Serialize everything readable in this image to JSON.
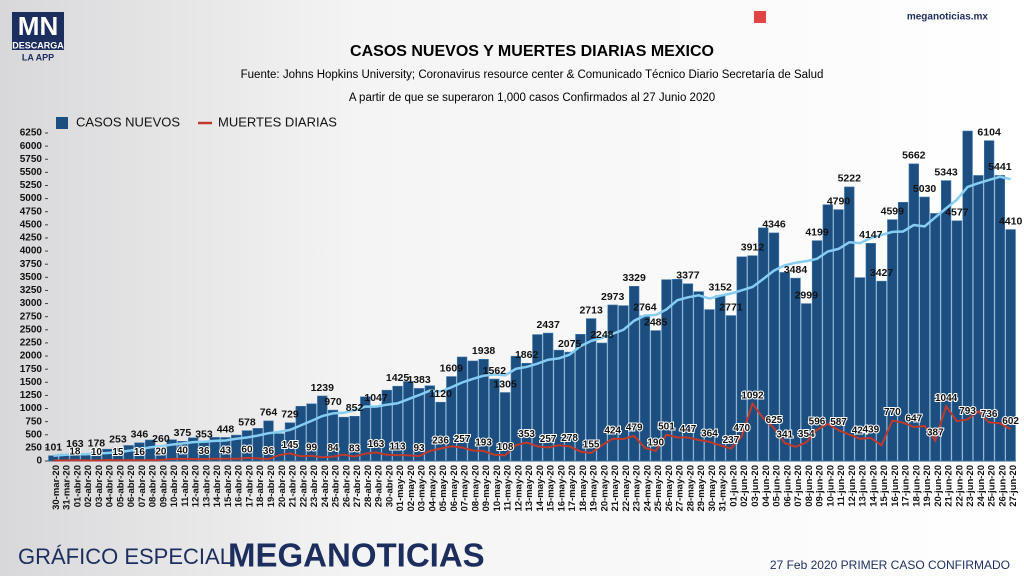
{
  "brand": {
    "logo": "MN",
    "download": "DESCARGA",
    "app": "LA APP",
    "site": "meganoticias.mx"
  },
  "footer": {
    "left": "GRÁFICO ESPECIAL",
    "brand": "MEGANOTICIAS",
    "note": "27 Feb 2020 PRIMER CASO CONFIRMADO"
  },
  "chart_data": {
    "type": "bar",
    "title": "CASOS NUEVOS Y MUERTES DIARIAS MEXICO",
    "subtitle": "Fuente: Johns Hopkins University; Coronavirus resource center & Comunicado Técnico Diario Secretaría de Salud",
    "note": "A partir de que se superaron 1,000 casos Confirmados al 27 Junio 2020",
    "categories": [
      "30-mar-20",
      "31-mar-20",
      "01-abr-20",
      "02-abr-20",
      "03-abr-20",
      "04-abr-20",
      "05-abr-20",
      "06-abr-20",
      "07-abr-20",
      "08-abr-20",
      "09-abr-20",
      "10-abr-20",
      "11-abr-20",
      "12-abr-20",
      "13-abr-20",
      "14-abr-20",
      "15-abr-20",
      "16-abr-20",
      "17-abr-20",
      "18-abr-20",
      "19-abr-20",
      "20-abr-20",
      "21-abr-20",
      "22-abr-20",
      "23-abr-20",
      "24-abr-20",
      "25-abr-20",
      "26-abr-20",
      "27-abr-20",
      "28-abr-20",
      "29-abr-20",
      "30-abr-20",
      "01-may-20",
      "02-may-20",
      "03-may-20",
      "04-may-20",
      "05-may-20",
      "06-may-20",
      "07-may-20",
      "08-may-20",
      "09-may-20",
      "10-may-20",
      "11-may-20",
      "12-may-20",
      "13-may-20",
      "14-may-20",
      "15-may-20",
      "16-may-20",
      "17-may-20",
      "18-may-20",
      "19-may-20",
      "20-may-20",
      "21-may-20",
      "22-may-20",
      "23-may-20",
      "24-may-20",
      "25-may-20",
      "26-may-20",
      "27-may-20",
      "28-may-20",
      "29-may-20",
      "30-may-20",
      "31-may-20",
      "01-jun-20",
      "02-jun-20",
      "03-jun-20",
      "04-jun-20",
      "05-jun-20",
      "06-jun-20",
      "07-jun-20",
      "08-jun-20",
      "09-jun-20",
      "10-jun-20",
      "11-jun-20",
      "12-jun-20",
      "13-jun-20",
      "14-jun-20",
      "15-jun-20",
      "16-jun-20",
      "17-jun-20",
      "18-jun-20",
      "19-jun-20",
      "20-jun-20",
      "21-jun-20",
      "22-jun-20",
      "23-jun-20",
      "24-jun-20",
      "25-jun-20",
      "26-jun-20",
      "27-jun-20"
    ],
    "series": [
      {
        "name": "CASOS NUEVOS",
        "type": "bar",
        "color": "#1c4f80",
        "values": [
          101,
          130,
          163,
          120,
          178,
          225,
          253,
          296,
          346,
          400,
          260,
          405,
          375,
          442,
          353,
          450,
          448,
          493,
          578,
          622,
          764,
          520,
          729,
          1043,
          1089,
          1239,
          970,
          835,
          852,
          1223,
          1047,
          1349,
          1425,
          1515,
          1383,
          1434,
          1120,
          1609,
          1982,
          1906,
          1938,
          1562,
          1305,
          1997,
          1862,
          2409,
          2437,
          2112,
          2075,
          2414,
          2713,
          2248,
          2973,
          2960,
          3329,
          2764,
          2485,
          3455,
          3463,
          3377,
          3227,
          2885,
          3152,
          2771,
          3891,
          3912,
          4442,
          4346,
          3593,
          3484,
          2999,
          4199,
          4883,
          4790,
          5222,
          3494,
          4147,
          3427,
          4599,
          4930,
          5662,
          5030,
          4717,
          5343,
          4577,
          6288,
          5441,
          6104,
          5441,
          4410
        ],
        "value_labels": [
          "101",
          null,
          "163",
          null,
          "178",
          null,
          "253",
          null,
          "346",
          null,
          "260",
          null,
          "375",
          null,
          "353",
          null,
          "448",
          null,
          "578",
          null,
          "764",
          null,
          "729",
          null,
          null,
          "1239",
          "970",
          null,
          "852",
          null,
          "1047",
          null,
          "1425",
          null,
          "1383",
          null,
          "1120",
          "1609",
          null,
          null,
          "1938",
          "1562",
          "1305",
          null,
          "1862",
          null,
          "2437",
          null,
          "2075",
          null,
          "2713",
          "2248",
          "2973",
          null,
          "3329",
          "2764",
          "2485",
          null,
          null,
          "3377",
          null,
          null,
          "3152",
          "2771",
          null,
          "3912",
          null,
          "4346",
          null,
          "3484",
          "2999",
          "4199",
          null,
          "4790",
          "5222",
          null,
          "4147",
          "3427",
          "4599",
          null,
          "5662",
          "5030",
          null,
          "5343",
          "4577",
          null,
          null,
          "6104",
          "5441",
          "4410"
        ]
      },
      {
        "name": "MUERTES DIARIAS",
        "type": "line",
        "color": "#c0392b",
        "values": [
          8,
          12,
          18,
          9,
          10,
          20,
          15,
          16,
          16,
          14,
          20,
          38,
          40,
          39,
          36,
          44,
          43,
          40,
          60,
          50,
          36,
          111,
          145,
          90,
          99,
          70,
          84,
          120,
          83,
          140,
          163,
          120,
          113,
          110,
          93,
          190,
          236,
          280,
          257,
          200,
          193,
          120,
          108,
          300,
          353,
          280,
          257,
          300,
          278,
          180,
          155,
          300,
          424,
          420,
          479,
          250,
          190,
          501,
          450,
          447,
          400,
          364,
          300,
          237,
          470,
          1092,
          816,
          625,
          341,
          270,
          354,
          596,
          708,
          587,
          504,
          424,
          439,
          300,
          770,
          730,
          647,
          667,
          387,
          1044,
          759,
          793,
          950,
          736,
          719,
          602
        ],
        "value_labels": [
          null,
          null,
          "18",
          null,
          "10",
          null,
          "15",
          null,
          "16",
          null,
          "20",
          null,
          "40",
          null,
          "36",
          null,
          "43",
          null,
          "60",
          null,
          "36",
          null,
          "145",
          null,
          "99",
          null,
          "84",
          null,
          "83",
          null,
          "163",
          null,
          "113",
          null,
          "93",
          null,
          "236",
          null,
          "257",
          null,
          "193",
          null,
          "108",
          null,
          "353",
          null,
          "257",
          null,
          "278",
          null,
          "155",
          null,
          "424",
          null,
          "479",
          null,
          "190",
          "501",
          null,
          "447",
          null,
          "364",
          null,
          "237",
          "470",
          "1092",
          null,
          "625",
          "341",
          null,
          "354",
          "596",
          null,
          "587",
          null,
          "424",
          "439",
          null,
          "770",
          null,
          "647",
          null,
          "387",
          "1044",
          null,
          "793",
          null,
          "736",
          null,
          "602"
        ]
      }
    ],
    "trend_color": "#86cdf2",
    "ylim": [
      0,
      6250
    ],
    "yticks": [
      0,
      250,
      500,
      750,
      1000,
      1250,
      1500,
      1750,
      2000,
      2250,
      2500,
      2750,
      3000,
      3250,
      3500,
      3750,
      4000,
      4250,
      4500,
      4750,
      5000,
      5250,
      5500,
      5750,
      6000,
      6250
    ],
    "grid": false,
    "legend": "top-left"
  }
}
